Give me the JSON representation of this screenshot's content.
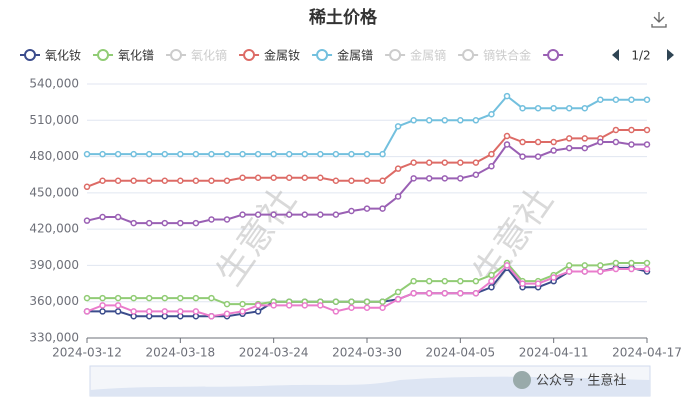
{
  "chart_data": {
    "type": "line",
    "title": "稀土价格",
    "categories": [
      "2024-03-12",
      null,
      null,
      null,
      null,
      null,
      "2024-03-18",
      null,
      null,
      null,
      null,
      null,
      "2024-03-24",
      null,
      null,
      null,
      null,
      null,
      "2024-03-30",
      null,
      null,
      null,
      null,
      null,
      "2024-04-05",
      null,
      null,
      null,
      null,
      null,
      "2024-04-11",
      null,
      null,
      null,
      null,
      null,
      "2024-04-17"
    ],
    "ylim": [
      330000,
      540000
    ],
    "yticks": [
      {
        "value": 330000,
        "label": "330,000"
      },
      {
        "value": 360000,
        "label": "360,000"
      },
      {
        "value": 390000,
        "label": "390,000"
      },
      {
        "value": 420000,
        "label": "420,000"
      },
      {
        "value": 450000,
        "label": "450,000"
      },
      {
        "value": 480000,
        "label": "480,000"
      },
      {
        "value": 510000,
        "label": "510,000"
      },
      {
        "value": 540000,
        "label": "540,000"
      }
    ],
    "grid": true,
    "legend_page": "1/2",
    "watermark": "生意社",
    "footer": "公众号 · 生意社",
    "series": [
      {
        "name": "氧化钕",
        "color": "#3b4c8c",
        "values": [
          352000,
          352000,
          352000,
          348000,
          348000,
          348000,
          348000,
          348000,
          348000,
          348000,
          350000,
          352000,
          360000,
          360000,
          360000,
          360000,
          360000,
          360000,
          360000,
          360000,
          362000,
          367000,
          367000,
          367000,
          367000,
          367000,
          372000,
          388000,
          372000,
          372000,
          377000,
          385000,
          385000,
          385000,
          388000,
          388000,
          385000
        ]
      },
      {
        "name": "氧化镨",
        "color": "#91cc75",
        "values": [
          363000,
          363000,
          363000,
          363000,
          363000,
          363000,
          363000,
          363000,
          363000,
          358000,
          358000,
          358000,
          360000,
          360000,
          360000,
          360000,
          360000,
          360000,
          360000,
          360000,
          368000,
          377000,
          377000,
          377000,
          377000,
          377000,
          382000,
          392000,
          377000,
          377000,
          382000,
          390000,
          390000,
          390000,
          392000,
          392000,
          392000
        ]
      },
      {
        "name": "氧化镝",
        "color": "#cccccc",
        "visible": false
      },
      {
        "name": "金属钕",
        "color": "#dd6b66",
        "values": [
          455000,
          460000,
          460000,
          460000,
          460000,
          460000,
          460000,
          460000,
          460000,
          460000,
          462500,
          462500,
          462500,
          462500,
          462500,
          462500,
          460000,
          460000,
          460000,
          460000,
          470000,
          475000,
          475000,
          475000,
          475000,
          475000,
          482000,
          497000,
          492000,
          492000,
          492000,
          495000,
          495000,
          495000,
          502000,
          502000,
          502000
        ]
      },
      {
        "name": "金属镨",
        "color": "#73c0de",
        "values": [
          482000,
          482000,
          482000,
          482000,
          482000,
          482000,
          482000,
          482000,
          482000,
          482000,
          482000,
          482000,
          482000,
          482000,
          482000,
          482000,
          482000,
          482000,
          482000,
          482000,
          505000,
          510000,
          510000,
          510000,
          510000,
          510000,
          515000,
          530000,
          520000,
          520000,
          520000,
          520000,
          520000,
          527000,
          527000,
          527000,
          527000
        ]
      },
      {
        "name": "金属镝",
        "color": "#cccccc",
        "visible": false
      },
      {
        "name": "镝铁合金",
        "color": "#cccccc",
        "visible": false
      },
      {
        "color": "#9a60b4",
        "values": [
          427000,
          430000,
          430000,
          425000,
          425000,
          425000,
          425000,
          425000,
          428000,
          428000,
          432000,
          432000,
          432000,
          432000,
          432000,
          432000,
          432000,
          435000,
          437000,
          437000,
          447000,
          462000,
          462000,
          462000,
          462000,
          465000,
          472000,
          490000,
          480000,
          480000,
          485000,
          487000,
          487000,
          492000,
          492000,
          490000,
          490000
        ]
      },
      {
        "color": "#ea7ccc",
        "legend": false,
        "values": [
          352000,
          357000,
          357000,
          352000,
          352000,
          352000,
          352000,
          352000,
          348000,
          350000,
          352000,
          357000,
          357000,
          357000,
          357000,
          357000,
          352000,
          355000,
          355000,
          355000,
          362000,
          367000,
          367000,
          367000,
          367000,
          367000,
          377000,
          390000,
          375000,
          375000,
          380000,
          385000,
          385000,
          385000,
          387000,
          387000,
          387000
        ]
      }
    ]
  }
}
